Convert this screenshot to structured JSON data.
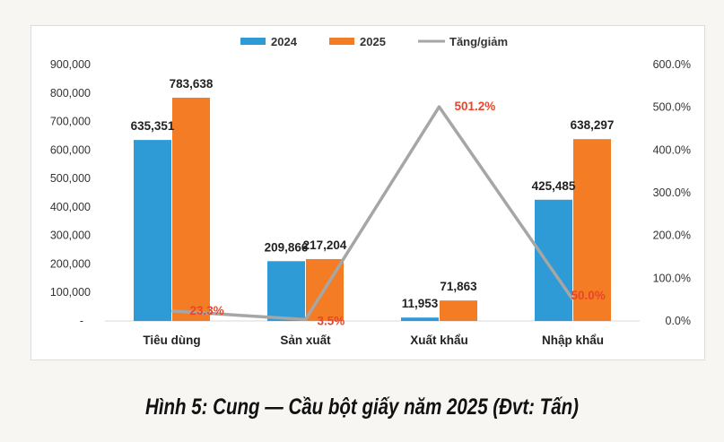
{
  "caption": "Hình 5: Cung — Cầu bột giấy năm 2025 (Đvt: Tấn)",
  "colors": {
    "series_2024": "#2e9bd6",
    "series_2025": "#f47c25",
    "change_line": "#a6a6a6",
    "pct_label": "#e8462a"
  },
  "chart_data": {
    "type": "bar",
    "categories": [
      "Tiêu dùng",
      "Sản xuất",
      "Xuất khẩu",
      "Nhập khẩu"
    ],
    "series": [
      {
        "name": "2024",
        "values": [
          635351,
          209866,
          11953,
          425485
        ],
        "labels": [
          "635,351",
          "209,866",
          "11,953",
          "425,485"
        ]
      },
      {
        "name": "2025",
        "values": [
          783638,
          217204,
          71863,
          638297
        ],
        "labels": [
          "783,638",
          "217,204",
          "71,863",
          "638,297"
        ]
      }
    ],
    "line_series": {
      "name": "Tăng/giảm",
      "axis": "right",
      "values": [
        23.3,
        3.5,
        501.2,
        50.0
      ],
      "labels": [
        "23.3%",
        "3.5%",
        "501.2%",
        "50.0%"
      ]
    },
    "ylim_left": [
      0,
      900000
    ],
    "ylim_right": [
      0,
      600
    ],
    "left_ticks": [
      "-",
      "100,000",
      "200,000",
      "300,000",
      "400,000",
      "500,000",
      "600,000",
      "700,000",
      "800,000",
      "900,000"
    ],
    "right_ticks": [
      "0.0%",
      "100.0%",
      "200.0%",
      "300.0%",
      "400.0%",
      "500.0%",
      "600.0%"
    ],
    "legend_position": "top-center",
    "grid": false
  }
}
